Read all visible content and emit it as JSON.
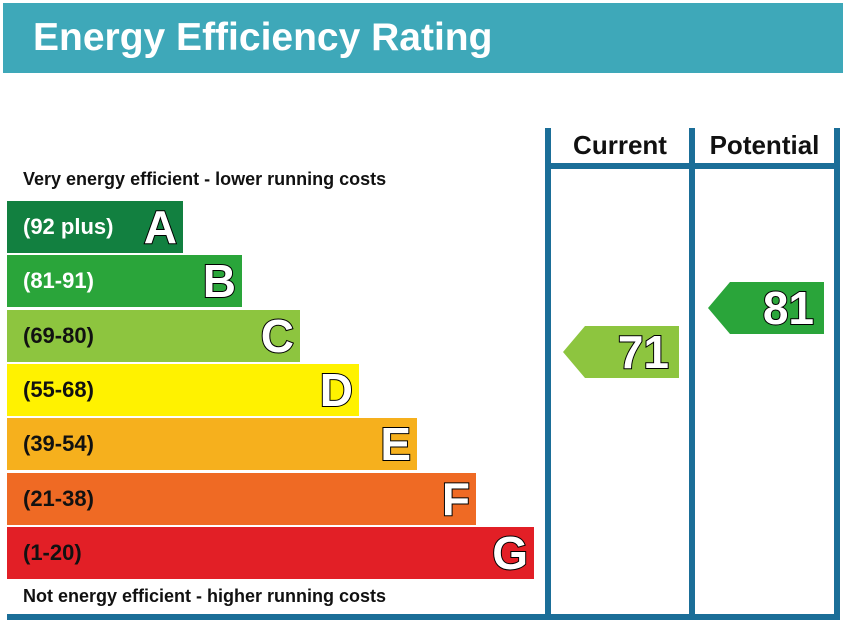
{
  "header": {
    "title": "Energy Efficiency Rating",
    "background": "#3ea8b9"
  },
  "captions": {
    "top": "Very energy efficient - lower running costs",
    "bottom": "Not energy efficient - higher running costs"
  },
  "columns": {
    "current": "Current",
    "potential": "Potential"
  },
  "chart_data": {
    "type": "bar",
    "title": "Energy Efficiency Rating",
    "bands": [
      {
        "letter": "A",
        "range": "(92 plus)",
        "color": "#128040",
        "text_color": "#ffffff"
      },
      {
        "letter": "B",
        "range": "(81-91)",
        "color": "#2aa53a",
        "text_color": "#ffffff"
      },
      {
        "letter": "C",
        "range": "(69-80)",
        "color": "#8dc53f",
        "text_color": "#111111"
      },
      {
        "letter": "D",
        "range": "(55-68)",
        "color": "#fff200",
        "text_color": "#111111"
      },
      {
        "letter": "E",
        "range": "(39-54)",
        "color": "#f6b01d",
        "text_color": "#111111"
      },
      {
        "letter": "F",
        "range": "(21-38)",
        "color": "#ef6a24",
        "text_color": "#111111"
      },
      {
        "letter": "G",
        "range": "(1-20)",
        "color": "#e21f26",
        "text_color": "#111111"
      }
    ],
    "ratings": {
      "current": {
        "value": 71,
        "band": "C",
        "color": "#8dc53f"
      },
      "potential": {
        "value": 81,
        "band": "B",
        "color": "#2aa53a"
      }
    }
  }
}
